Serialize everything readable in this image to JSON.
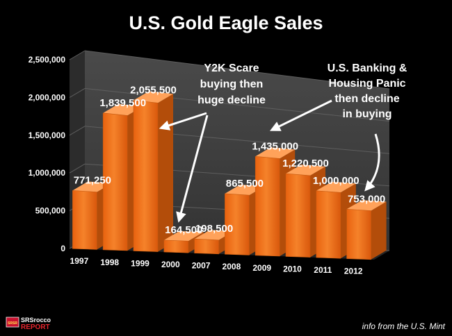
{
  "chart_data": {
    "type": "bar",
    "title": "U.S. Gold Eagle Sales",
    "categories": [
      "1997",
      "1998",
      "1999",
      "2000",
      "2007",
      "2008",
      "2009",
      "2010",
      "2011",
      "2012"
    ],
    "values": [
      771250,
      1839500,
      2055500,
      164500,
      198500,
      865500,
      1435000,
      1220500,
      1000000,
      753000
    ],
    "value_labels": [
      "771,250",
      "1,839,500",
      "2,055,500",
      "164,500",
      "198,500",
      "865,500",
      "1,435,000",
      "1,220,500",
      "1,000,000",
      "753,000"
    ],
    "yticks": [
      "0",
      "500,000",
      "1,000,000",
      "1,500,000",
      "2,000,000",
      "2,500,000"
    ],
    "ylim": [
      0,
      2500000
    ],
    "grid": true,
    "bar_color": "#f0741a",
    "annotations": [
      {
        "lines": [
          "Y2K Scare",
          "buying then",
          "huge decline"
        ]
      },
      {
        "lines": [
          "U.S. Banking &",
          "Housing Panic",
          "then decline",
          "in buying"
        ]
      }
    ],
    "source": "info from the U.S. Mint"
  },
  "logo": {
    "top": "SRSrocco",
    "bottom": "REPORT",
    "badge": "SRSR"
  },
  "colors": {
    "background": "#000000",
    "wall": "#3c3c3c",
    "floor": "#262626",
    "grid": "#5e5e5e",
    "bar_front": "#f0741a",
    "bar_side": "#b34d0a",
    "bar_top": "#ffa25a"
  }
}
